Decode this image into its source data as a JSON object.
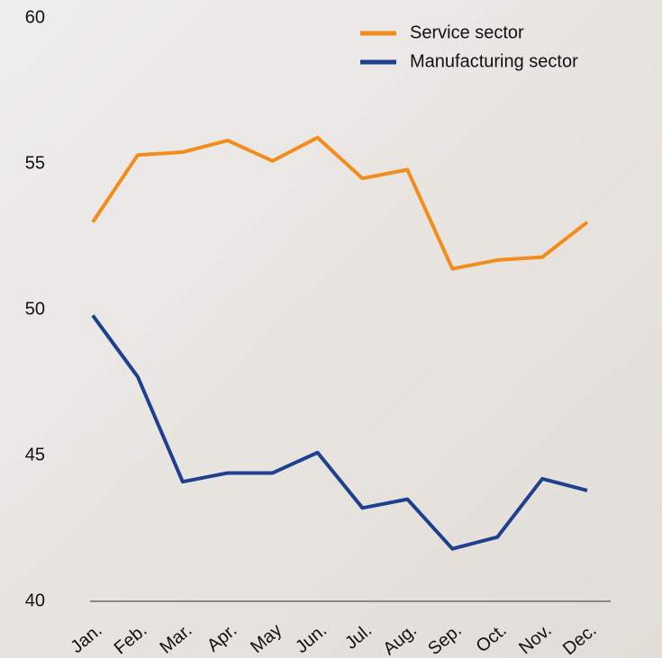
{
  "chart_data": {
    "type": "line",
    "categories": [
      "Jan.",
      "Feb.",
      "Mar.",
      "Apr.",
      "May",
      "Jun.",
      "Jul.",
      "Aug.",
      "Sep.",
      "Oct.",
      "Nov.",
      "Dec."
    ],
    "series": [
      {
        "name": "Service sector",
        "color": "#f28c1a",
        "values": [
          53.0,
          55.3,
          55.4,
          55.8,
          55.1,
          55.9,
          54.5,
          54.8,
          51.4,
          51.7,
          51.8,
          53.0
        ]
      },
      {
        "name": "Manufacturing sector",
        "color": "#1f3f8f",
        "values": [
          49.8,
          47.7,
          44.1,
          44.4,
          44.4,
          45.1,
          43.2,
          43.5,
          41.8,
          42.2,
          44.2,
          43.8
        ]
      }
    ],
    "ylim": [
      40,
      60
    ],
    "yticks": [
      40,
      45,
      50,
      55,
      60
    ],
    "grid": false,
    "legend": "top-right"
  }
}
